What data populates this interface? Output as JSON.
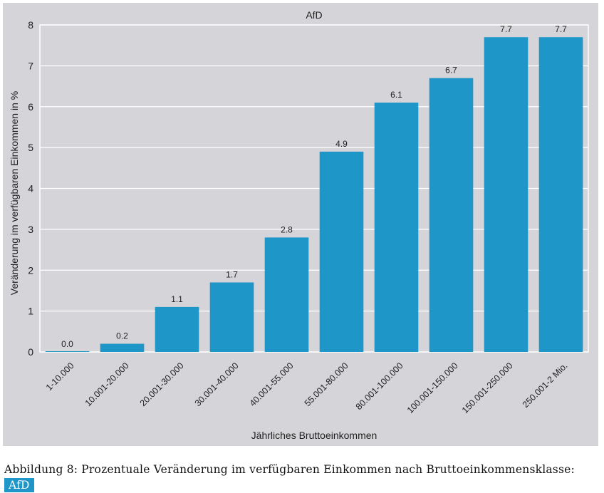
{
  "chart_data": {
    "type": "bar",
    "title": "AfD",
    "xlabel": "Jährliches Bruttoeinkommen",
    "ylabel": "Veränderung im verfügbaren Einkommen in %",
    "categories": [
      "1-10.000",
      "10.001-20.000",
      "20.001-30.000",
      "30.001-40.000",
      "40.001-55.000",
      "55.001-80.000",
      "80.001-100.000",
      "100.001-150.000",
      "150.001-250.000",
      "250.001-2 Mio."
    ],
    "values": [
      0.0,
      0.2,
      1.1,
      1.7,
      2.8,
      4.9,
      6.1,
      6.7,
      7.7,
      7.7
    ],
    "value_labels": [
      "0.0",
      "0.2",
      "1.1",
      "1.7",
      "2.8",
      "4.9",
      "6.1",
      "6.7",
      "7.7",
      "7.7"
    ],
    "yticks": [
      0,
      1,
      2,
      3,
      4,
      5,
      6,
      7,
      8
    ],
    "ylim": [
      0,
      8
    ],
    "grid": true,
    "bar_color": "#1e96c8",
    "background_color": "#d4d4d9"
  },
  "caption": {
    "text": "Abbildung 8: Prozentuale Veränderung im verfügbaren Einkommen nach Bruttoeinkommensklasse: ",
    "tag": "AfD"
  }
}
